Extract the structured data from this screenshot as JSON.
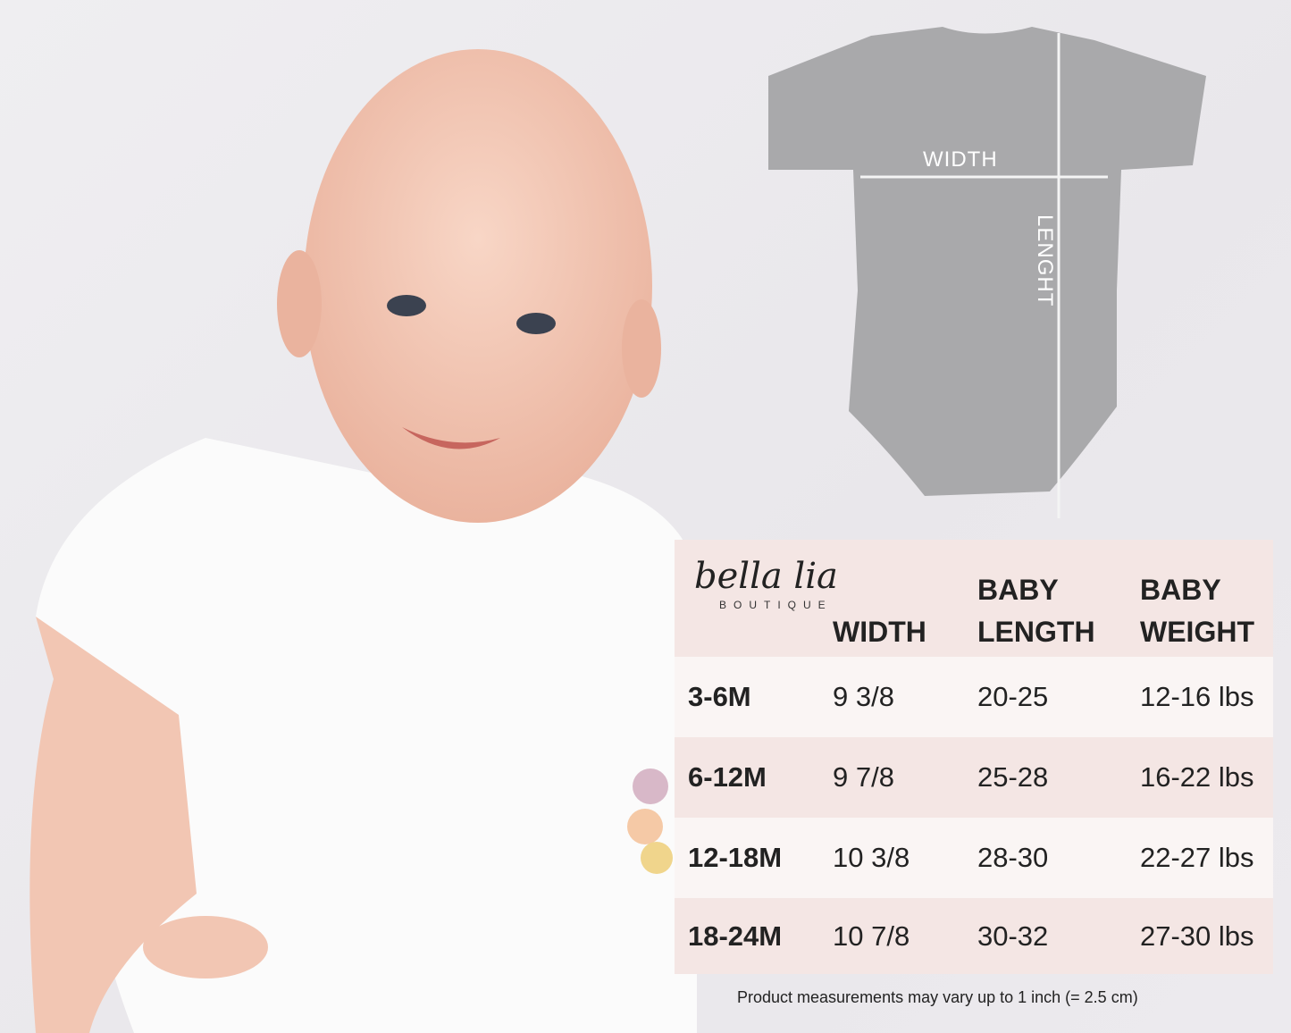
{
  "logo": {
    "script": "bella lia",
    "sub": "BOUTIQUE"
  },
  "diagram": {
    "width_label": "WIDTH",
    "length_label": "LENGHT"
  },
  "table": {
    "headers": [
      "",
      "WIDTH",
      "BABY LENGTH",
      "BABY WEIGHT"
    ],
    "header_lines": {
      "width": "WIDTH",
      "length_1": "BABY",
      "length_2": "LENGTH",
      "weight_1": "BABY",
      "weight_2": "WEIGHT"
    },
    "rows": [
      [
        "3-6M",
        "9 3/8",
        "20-25",
        "12-16 lbs"
      ],
      [
        "6-12M",
        "9 7/8",
        "25-28",
        "16-22 lbs"
      ],
      [
        "12-18M",
        "10 3/8",
        "28-30",
        "22-27 lbs"
      ],
      [
        "18-24M",
        "10 7/8",
        "30-32",
        "27-30 lbs"
      ]
    ]
  },
  "note": "Product measurements may vary up to 1 inch (= 2.5 cm)",
  "colors": {
    "header_bg": "#f4e6e4",
    "row_light": "#faf5f4",
    "onesie": "#a9a9ab"
  }
}
